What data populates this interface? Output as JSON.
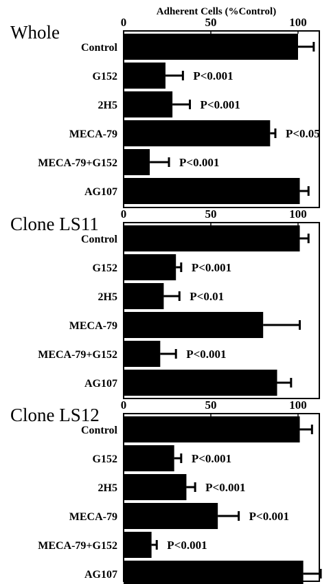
{
  "figure": {
    "axis_title": "Adherent Cells (%Control)"
  },
  "chart_data": [
    {
      "type": "bar",
      "orientation": "horizontal",
      "title": "Whole",
      "xlabel": "Adherent Cells (%Control)",
      "xlim": [
        0,
        125
      ],
      "xticks": [
        0,
        50,
        100
      ],
      "categories": [
        "Control",
        "G152",
        "2H5",
        "MECA-79",
        "MECA-79+G152",
        "AG107"
      ],
      "values": [
        100,
        24,
        28,
        84,
        15,
        101
      ],
      "errors": [
        9,
        10,
        10,
        3,
        11,
        5
      ],
      "annotations": [
        "",
        "P<0.001",
        "P<0.001",
        "P<0.05",
        "P<0.001",
        ""
      ]
    },
    {
      "type": "bar",
      "orientation": "horizontal",
      "title": "Clone LS11",
      "xlim": [
        0,
        125
      ],
      "xticks": [
        0,
        50,
        100
      ],
      "categories": [
        "Control",
        "G152",
        "2H5",
        "MECA-79",
        "MECA-79+G152",
        "AG107"
      ],
      "values": [
        101,
        30,
        23,
        80,
        21,
        88
      ],
      "errors": [
        5,
        3,
        9,
        21,
        9,
        8
      ],
      "annotations": [
        "",
        "P<0.001",
        "P<0.01",
        "",
        "P<0.001",
        ""
      ]
    },
    {
      "type": "bar",
      "orientation": "horizontal",
      "title": "Clone LS12",
      "xlim": [
        0,
        125
      ],
      "xticks": [
        0,
        50,
        100
      ],
      "categories": [
        "Control",
        "G152",
        "2H5",
        "MECA-79",
        "MECA-79+G152",
        "AG107"
      ],
      "values": [
        101,
        29,
        36,
        54,
        16,
        103
      ],
      "errors": [
        7,
        4,
        5,
        12,
        3,
        10
      ],
      "annotations": [
        "",
        "P<0.001",
        "P<0.001",
        "P<0.001",
        "P<0.001",
        ""
      ]
    }
  ]
}
